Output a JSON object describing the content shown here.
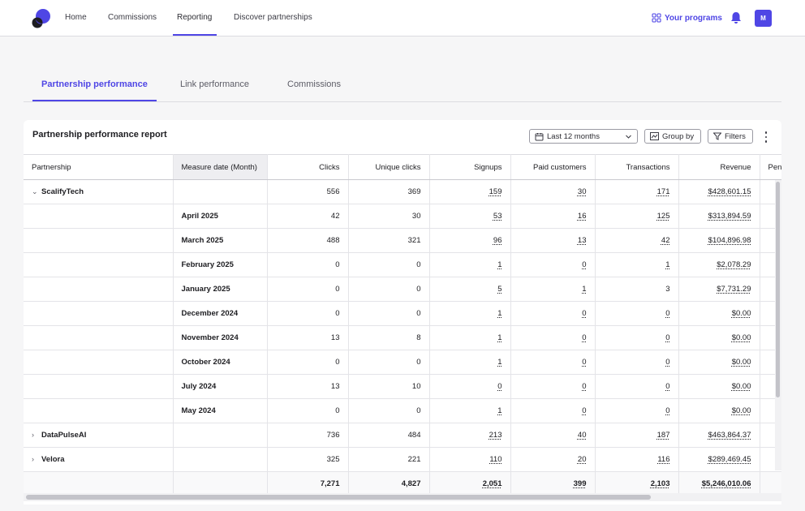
{
  "nav": {
    "items": [
      {
        "label": "Home"
      },
      {
        "label": "Commissions"
      },
      {
        "label": "Reporting"
      },
      {
        "label": "Discover partnerships"
      }
    ],
    "your_programs": "Your programs",
    "avatar_initial": "M",
    "accent_color": "#4f46e5"
  },
  "tabs": [
    {
      "label": "Partnership performance"
    },
    {
      "label": "Link performance"
    },
    {
      "label": "Commissions"
    }
  ],
  "report": {
    "title": "Partnership performance report",
    "date_range": "Last 12 months",
    "group_by_label": "Group by",
    "filters_label": "Filters"
  },
  "table": {
    "columns": [
      "Partnership",
      "Measure date (Month)",
      "Clicks",
      "Unique clicks",
      "Signups",
      "Paid customers",
      "Transactions",
      "Revenue",
      "Pend"
    ],
    "rows": [
      {
        "partnership": "ScalifyTech",
        "month": "",
        "clicks": "556",
        "unique_clicks": "369",
        "signups": "159",
        "paid_customers": "30",
        "transactions": "171",
        "revenue": "$428,601.15"
      },
      {
        "partnership": "",
        "month": "April 2025",
        "clicks": "42",
        "unique_clicks": "30",
        "signups": "53",
        "paid_customers": "16",
        "transactions": "125",
        "revenue": "$313,894.59"
      },
      {
        "partnership": "",
        "month": "March 2025",
        "clicks": "488",
        "unique_clicks": "321",
        "signups": "96",
        "paid_customers": "13",
        "transactions": "42",
        "revenue": "$104,896.98"
      },
      {
        "partnership": "",
        "month": "February 2025",
        "clicks": "0",
        "unique_clicks": "0",
        "signups": "1",
        "paid_customers": "0",
        "transactions": "1",
        "revenue": "$2,078.29"
      },
      {
        "partnership": "",
        "month": "January 2025",
        "clicks": "0",
        "unique_clicks": "0",
        "signups": "5",
        "paid_customers": "1",
        "transactions": "3",
        "revenue": "$7,731.29"
      },
      {
        "partnership": "",
        "month": "December 2024",
        "clicks": "0",
        "unique_clicks": "0",
        "signups": "1",
        "paid_customers": "0",
        "transactions": "0",
        "revenue": "$0.00"
      },
      {
        "partnership": "",
        "month": "November 2024",
        "clicks": "13",
        "unique_clicks": "8",
        "signups": "1",
        "paid_customers": "0",
        "transactions": "0",
        "revenue": "$0.00"
      },
      {
        "partnership": "",
        "month": "October 2024",
        "clicks": "0",
        "unique_clicks": "0",
        "signups": "1",
        "paid_customers": "0",
        "transactions": "0",
        "revenue": "$0.00"
      },
      {
        "partnership": "",
        "month": "July 2024",
        "clicks": "13",
        "unique_clicks": "10",
        "signups": "0",
        "paid_customers": "0",
        "transactions": "0",
        "revenue": "$0.00"
      },
      {
        "partnership": "",
        "month": "May 2024",
        "clicks": "0",
        "unique_clicks": "0",
        "signups": "1",
        "paid_customers": "0",
        "transactions": "0",
        "revenue": "$0.00"
      },
      {
        "partnership": "DataPulseAI",
        "month": "",
        "clicks": "736",
        "unique_clicks": "484",
        "signups": "213",
        "paid_customers": "40",
        "transactions": "187",
        "revenue": "$463,864.37"
      },
      {
        "partnership": "Velora",
        "month": "",
        "clicks": "325",
        "unique_clicks": "221",
        "signups": "110",
        "paid_customers": "20",
        "transactions": "116",
        "revenue": "$289,469.45"
      }
    ],
    "totals": {
      "clicks": "7,271",
      "unique_clicks": "4,827",
      "signups": "2,051",
      "paid_customers": "399",
      "transactions": "2,103",
      "revenue": "$5,246,010.06"
    }
  }
}
